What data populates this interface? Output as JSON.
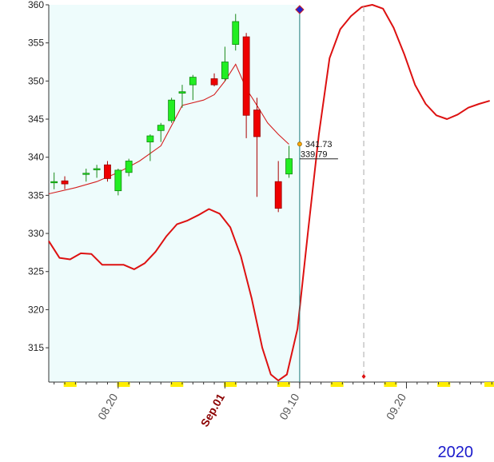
{
  "chart_data": {
    "type": "candlestick",
    "year_label": "2020",
    "y_ticks": [
      360,
      355,
      350,
      345,
      340,
      335,
      330,
      325,
      320,
      315
    ],
    "ylim": [
      310.5,
      360
    ],
    "x_tick_labels": [
      {
        "label": "08.20",
        "x": 6
      },
      {
        "label": "Sep.01",
        "x": 16,
        "style": "month"
      },
      {
        "label": "09.10",
        "x": 23
      },
      {
        "label": "09.20",
        "x": 33
      }
    ],
    "xlim": [
      -0.5,
      41.2
    ],
    "shaded_region_end_x": 23,
    "candles": [
      {
        "x": 0,
        "open": 336.8,
        "high": 338.0,
        "low": 335.8,
        "close": 336.8
      },
      {
        "x": 1,
        "open": 336.9,
        "high": 337.5,
        "low": 335.8,
        "close": 336.5
      },
      {
        "x": 3,
        "open": 337.9,
        "high": 338.5,
        "low": 336.8,
        "close": 337.9
      },
      {
        "x": 4,
        "open": 338.5,
        "high": 339.0,
        "low": 337.3,
        "close": 338.5
      },
      {
        "x": 5,
        "open": 339.0,
        "high": 339.5,
        "low": 336.8,
        "close": 337.2
      },
      {
        "x": 6,
        "open": 335.6,
        "high": 338.5,
        "low": 335.0,
        "close": 338.3
      },
      {
        "x": 7,
        "open": 338.0,
        "high": 339.8,
        "low": 337.5,
        "close": 339.5
      },
      {
        "x": 9,
        "open": 342.0,
        "high": 343.0,
        "low": 339.5,
        "close": 342.8
      },
      {
        "x": 10,
        "open": 343.5,
        "high": 344.5,
        "low": 342.0,
        "close": 344.2
      },
      {
        "x": 11,
        "open": 344.8,
        "high": 347.8,
        "low": 344.5,
        "close": 347.5
      },
      {
        "x": 12,
        "open": 348.4,
        "high": 349.5,
        "low": 346.5,
        "close": 348.6
      },
      {
        "x": 13,
        "open": 349.5,
        "high": 350.8,
        "low": 347.5,
        "close": 350.5
      },
      {
        "x": 15,
        "open": 350.3,
        "high": 351.0,
        "low": 349.3,
        "close": 349.5
      },
      {
        "x": 16,
        "open": 350.3,
        "high": 354.5,
        "low": 350.0,
        "close": 352.5
      },
      {
        "x": 17,
        "open": 354.8,
        "high": 358.8,
        "low": 354.0,
        "close": 357.8
      },
      {
        "x": 18,
        "open": 355.8,
        "high": 356.3,
        "low": 342.5,
        "close": 345.5
      },
      {
        "x": 19,
        "open": 346.2,
        "high": 347.8,
        "low": 334.8,
        "close": 342.7
      },
      {
        "x": 21,
        "open": 336.8,
        "high": 339.5,
        "low": 332.8,
        "close": 333.3
      },
      {
        "x": 22,
        "open": 337.8,
        "high": 341.5,
        "low": 337.3,
        "close": 339.8
      }
    ],
    "moving_average": {
      "color": "#d42020",
      "points": [
        [
          -0.5,
          335.2
        ],
        [
          2,
          336.0
        ],
        [
          4,
          336.8
        ],
        [
          6,
          338.0
        ],
        [
          8,
          339.5
        ],
        [
          10,
          341.5
        ],
        [
          12,
          346.8
        ],
        [
          14,
          347.5
        ],
        [
          15,
          348.2
        ],
        [
          16,
          350.0
        ],
        [
          17,
          352.2
        ],
        [
          18,
          349.0
        ],
        [
          19,
          346.8
        ],
        [
          20,
          344.5
        ],
        [
          21,
          343.0
        ],
        [
          22,
          341.7
        ]
      ]
    },
    "forecast_curve": {
      "color": "#dd1111",
      "points": [
        [
          -0.5,
          329.0
        ],
        [
          0.5,
          326.8
        ],
        [
          1.5,
          326.6
        ],
        [
          2.5,
          327.4
        ],
        [
          3.5,
          327.3
        ],
        [
          4.5,
          325.9
        ],
        [
          5.5,
          325.9
        ],
        [
          6.5,
          325.9
        ],
        [
          7.5,
          325.3
        ],
        [
          8.5,
          326.1
        ],
        [
          9.5,
          327.6
        ],
        [
          10.5,
          329.6
        ],
        [
          11.5,
          331.2
        ],
        [
          12.5,
          331.7
        ],
        [
          13.5,
          332.4
        ],
        [
          14.5,
          333.2
        ],
        [
          15.5,
          332.6
        ],
        [
          16.5,
          330.8
        ],
        [
          17.5,
          327.0
        ],
        [
          18.5,
          321.5
        ],
        [
          19.5,
          315.0
        ],
        [
          20.3,
          311.5
        ],
        [
          21,
          310.7
        ],
        [
          21.8,
          311.5
        ],
        [
          22.8,
          317.5
        ],
        [
          23.8,
          330.5
        ],
        [
          24.8,
          343.0
        ],
        [
          25.8,
          353.0
        ],
        [
          26.8,
          356.8
        ],
        [
          27.8,
          358.5
        ],
        [
          28.8,
          359.7
        ],
        [
          29.8,
          360.0
        ],
        [
          30.8,
          359.5
        ],
        [
          31.8,
          357.0
        ],
        [
          32.8,
          353.5
        ],
        [
          33.8,
          349.5
        ],
        [
          34.8,
          347.0
        ],
        [
          35.8,
          345.5
        ],
        [
          36.8,
          345.0
        ],
        [
          37.8,
          345.6
        ],
        [
          38.8,
          346.5
        ],
        [
          39.8,
          347.0
        ],
        [
          40.8,
          347.4
        ]
      ]
    },
    "crosshair_x": 23,
    "price_markers": [
      {
        "label": "341.73",
        "value": 341.73
      },
      {
        "label": "339.79",
        "value": 339.79
      }
    ],
    "forecast_peak_x": 29,
    "weekend_markers_x": [
      1.5,
      6.5,
      11.5,
      16.5,
      21.5,
      26.5,
      31.5,
      36.5,
      40.9
    ]
  }
}
